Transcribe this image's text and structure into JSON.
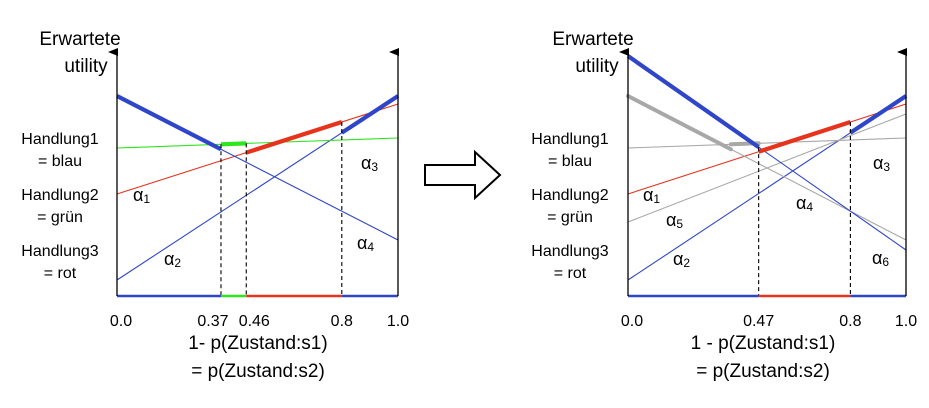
{
  "colors": {
    "blue": "#2f46c8",
    "green": "#2ee61e",
    "red": "#e8331c",
    "gray": "#a8a8a8",
    "black": "#000000"
  },
  "left": {
    "y_axis_title_line1": "Erwartete",
    "y_axis_title_line2": "utility",
    "actions": [
      {
        "line1": "Handlung1",
        "line2": "= blau",
        "color": "#2f46c8"
      },
      {
        "line1": "Handlung2",
        "line2": "= grün",
        "color": "#2ee61e"
      },
      {
        "line1": "Handlung3",
        "line2": "= rot",
        "color": "#e8331c"
      }
    ],
    "x_ticks": [
      "0.0",
      "0.37",
      "0.46",
      "0.8",
      "1.0"
    ],
    "x_title_line1": "1- p(Zustand:s1)",
    "x_title_line2": "= p(Zustand:s2)",
    "alpha_labels": [
      {
        "letter": "α",
        "sub": "1",
        "color": "#e8331c"
      },
      {
        "letter": "α",
        "sub": "2",
        "color": "#2f46c8"
      },
      {
        "letter": "α",
        "sub": "3",
        "color": "#2ee61e"
      },
      {
        "letter": "α",
        "sub": "4",
        "color": "#2f46c8"
      }
    ],
    "lines": [
      {
        "name": "alpha1",
        "color": "#e8331c",
        "y0": 0.51,
        "y1": 0.96
      },
      {
        "name": "alpha2",
        "color": "#2f46c8",
        "y0": 0.08,
        "y1": 1.0
      },
      {
        "name": "alpha3",
        "color": "#2ee61e",
        "y0": 0.74,
        "y1": 0.79
      },
      {
        "name": "alpha4",
        "color": "#2f46c8",
        "y0": 1.0,
        "y1": 0.28
      }
    ],
    "upper_envelope": [
      {
        "x0": 0.0,
        "x1": 0.37,
        "color": "#2f46c8"
      },
      {
        "x0": 0.37,
        "x1": 0.46,
        "color": "#2ee61e"
      },
      {
        "x0": 0.46,
        "x1": 0.8,
        "color": "#e8331c"
      },
      {
        "x0": 0.8,
        "x1": 1.0,
        "color": "#2f46c8"
      }
    ],
    "x_markers": [
      0.37,
      0.46,
      0.8
    ]
  },
  "right": {
    "y_axis_title_line1": "Erwartete",
    "y_axis_title_line2": "utility",
    "actions": [
      {
        "line1": "Handlung1",
        "line2": "= blau",
        "color": "#2f46c8"
      },
      {
        "line1": "Handlung2",
        "line2": "= grün",
        "color": "#2ee61e"
      },
      {
        "line1": "Handlung3",
        "line2": "= rot",
        "color": "#e8331c"
      }
    ],
    "x_ticks": [
      "0.0",
      "0.47",
      "0.8",
      "1.0"
    ],
    "x_title_line1": "1 - p(Zustand:s1)",
    "x_title_line2": "= p(Zustand:s2)",
    "alpha_labels": [
      {
        "letter": "α",
        "sub": "1",
        "color": "#e8331c"
      },
      {
        "letter": "α",
        "sub": "2",
        "color": "#2f46c8"
      },
      {
        "letter": "α",
        "sub": "3",
        "color": "#a8a8a8"
      },
      {
        "letter": "α",
        "sub": "4",
        "color": "#a8a8a8"
      },
      {
        "letter": "α",
        "sub": "5",
        "color": "#a8a8a8"
      },
      {
        "letter": "α",
        "sub": "6",
        "color": "#2f46c8"
      }
    ],
    "lines": [
      {
        "name": "alpha1",
        "color": "#e8331c",
        "y0": 0.51,
        "y1": 0.96
      },
      {
        "name": "alpha2",
        "color": "#2f46c8",
        "y0": 0.08,
        "y1": 1.0
      },
      {
        "name": "alpha3",
        "color": "#a8a8a8",
        "y0": 0.74,
        "y1": 0.79
      },
      {
        "name": "alpha4",
        "color": "#a8a8a8",
        "y0": 1.0,
        "y1": 0.28
      },
      {
        "name": "alpha5",
        "color": "#a8a8a8",
        "y0": 0.37,
        "y1": 0.91
      },
      {
        "name": "alpha6",
        "color": "#2f46c8",
        "y0": 1.2,
        "y1": 0.23
      }
    ],
    "upper_envelope": [
      {
        "x0": 0.0,
        "x1": 0.47,
        "color": "#2f46c8"
      },
      {
        "x0": 0.47,
        "x1": 0.8,
        "color": "#e8331c"
      },
      {
        "x0": 0.8,
        "x1": 1.0,
        "color": "#2f46c8"
      }
    ],
    "gray_envelope": [
      {
        "x0": 0.0,
        "x1": 0.37,
        "line": "alpha4"
      },
      {
        "x0": 0.37,
        "x1": 0.47,
        "line": "alpha3"
      }
    ],
    "x_markers": [
      0.47,
      0.8
    ]
  },
  "arrow_direction": "right"
}
